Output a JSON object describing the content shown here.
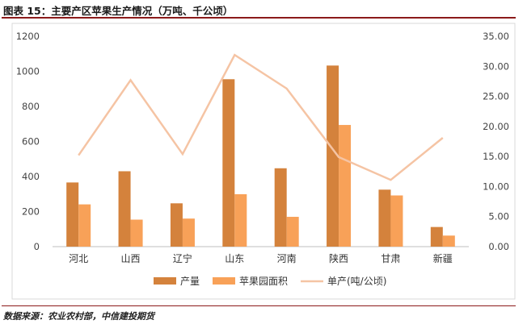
{
  "header": {
    "title": "图表 15：主要产区苹果生产情况（万吨、千公顷）"
  },
  "footer": {
    "source": "数据来源：农业农村部，中信建投期货"
  },
  "colors": {
    "production": "#d4823c",
    "area": "#f8a158",
    "yield": "#f5c4a4",
    "rule": "#8b1a1a"
  },
  "chart_data": {
    "type": "bar",
    "categories": [
      "河北",
      "山西",
      "辽宁",
      "山东",
      "河南",
      "陕西",
      "甘肃",
      "新疆"
    ],
    "series": [
      {
        "name": "产量",
        "type": "bar",
        "axis": "left",
        "values": [
          366,
          430,
          247,
          955,
          447,
          1033,
          325,
          112
        ]
      },
      {
        "name": "苹果园面积",
        "type": "bar",
        "axis": "left",
        "values": [
          241,
          154,
          160,
          299,
          170,
          694,
          292,
          63
        ]
      },
      {
        "name": "单产(吨/公顷)",
        "type": "line",
        "axis": "right",
        "values": [
          15.2,
          27.7,
          15.4,
          31.9,
          26.3,
          14.9,
          11.1,
          18.1
        ]
      }
    ],
    "y_left": {
      "ylim": [
        0,
        1200
      ],
      "ticks": [
        "0",
        "200",
        "400",
        "600",
        "800",
        "1000",
        "1200"
      ]
    },
    "y_right": {
      "ylim": [
        0,
        35
      ],
      "ticks": [
        "0.00",
        "5.00",
        "10.00",
        "15.00",
        "20.00",
        "25.00",
        "30.00",
        "35.00"
      ]
    },
    "grid": false,
    "legend": "bottom"
  }
}
